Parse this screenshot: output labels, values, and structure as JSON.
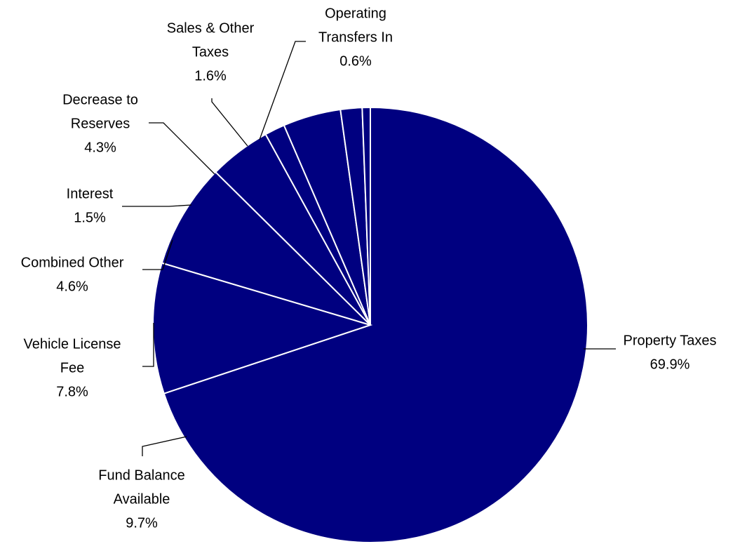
{
  "chart_data": {
    "type": "pie",
    "title": "",
    "start": "12 o'clock, clockwise",
    "slice_color": "#000080",
    "slice_border_color": "#ffffff",
    "slices": [
      {
        "lines": [
          "Property Taxes"
        ],
        "value": 69.9,
        "pct_label": "69.9%"
      },
      {
        "lines": [
          "Fund Balance",
          "Available"
        ],
        "value": 9.7,
        "pct_label": "9.7%"
      },
      {
        "lines": [
          "Vehicle License",
          "Fee"
        ],
        "value": 7.8,
        "pct_label": "7.8%"
      },
      {
        "lines": [
          "Combined Other"
        ],
        "value": 4.6,
        "pct_label": "4.6%"
      },
      {
        "lines": [
          "Interest"
        ],
        "value": 1.5,
        "pct_label": "1.5%"
      },
      {
        "lines": [
          "Decrease to",
          "Reserves"
        ],
        "value": 4.3,
        "pct_label": "4.3%"
      },
      {
        "lines": [
          "Sales & Other",
          "Taxes"
        ],
        "value": 1.6,
        "pct_label": "1.6%"
      },
      {
        "lines": [
          "Operating",
          "Transfers In"
        ],
        "value": 0.6,
        "pct_label": "0.6%"
      }
    ]
  }
}
